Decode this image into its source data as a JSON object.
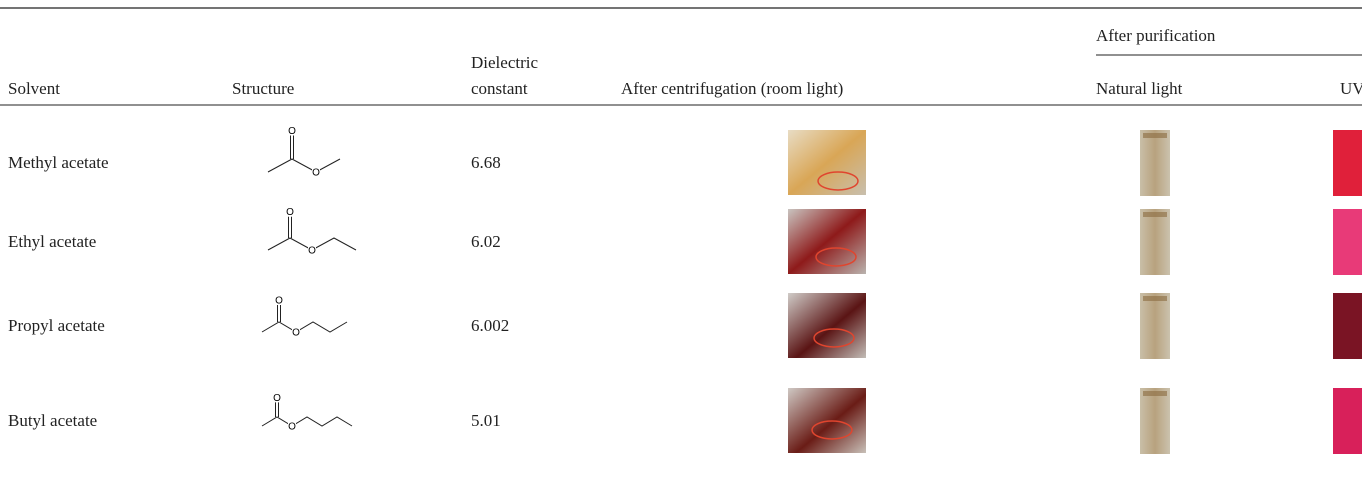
{
  "table": {
    "header": {
      "group": "After purification",
      "columns": [
        "Solvent",
        "Structure",
        "Dielectric constant",
        "After centrifugation (room light)",
        "Natural light",
        "UV"
      ]
    },
    "rows": [
      {
        "solvent": "Methyl acetate",
        "structure_atoms": [
          "O",
          "O"
        ],
        "dielectric_constant": 6.68
      },
      {
        "solvent": "Ethyl acetate",
        "structure_atoms": [
          "O",
          "O"
        ],
        "dielectric_constant": 6.02
      },
      {
        "solvent": "Propyl acetate",
        "structure_atoms": [
          "O",
          "O"
        ],
        "dielectric_constant": 6.002
      },
      {
        "solvent": "Butyl acetate",
        "structure_atoms": [
          "O",
          "O"
        ],
        "dielectric_constant": 5.01
      }
    ]
  }
}
